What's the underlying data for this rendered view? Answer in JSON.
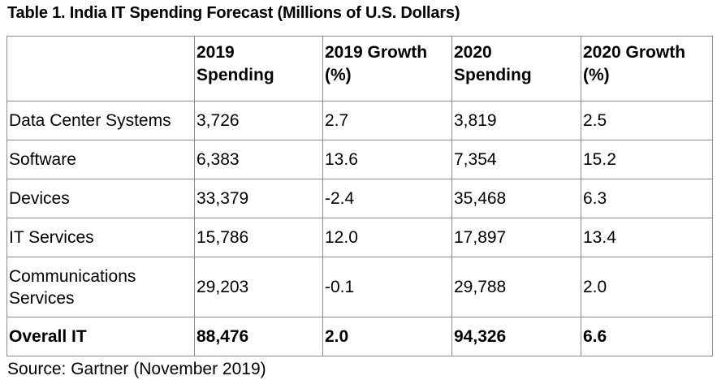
{
  "title": "Table 1. India IT Spending Forecast (Millions of U.S. Dollars)",
  "columns": [
    "",
    "2019 Spending",
    "2019 Growth (%)",
    "2020 Spending",
    "2020 Growth (%)"
  ],
  "header_lines": [
    [
      "",
      ""
    ],
    [
      "2019",
      "Spending"
    ],
    [
      "2019 Growth",
      "(%)"
    ],
    [
      "2020",
      "Spending"
    ],
    [
      "2020 Growth",
      "(%)"
    ]
  ],
  "rows": [
    {
      "segment": "Data Center Systems",
      "s2019": "3,726",
      "g2019": "2.7",
      "s2020": "3,819",
      "g2020": "2.5"
    },
    {
      "segment": "Software",
      "s2019": "6,383",
      "g2019": "13.6",
      "s2020": "7,354",
      "g2020": "15.2"
    },
    {
      "segment": "Devices",
      "s2019": "33,379",
      "g2019": "-2.4",
      "s2020": "35,468",
      "g2020": "6.3"
    },
    {
      "segment": "IT Services",
      "s2019": "15,786",
      "g2019": "12.0",
      "s2020": "17,897",
      "g2020": "13.4"
    },
    {
      "segment_lines": [
        "Communications",
        "Services"
      ],
      "segment": "Communications Services",
      "s2019": "29,203",
      "g2019": "-0.1",
      "s2020": "29,788",
      "g2020": "2.0"
    }
  ],
  "total": {
    "segment": "Overall IT",
    "s2019": "88,476",
    "g2019": "2.0",
    "s2020": "94,326",
    "g2020": "6.6"
  },
  "source": "Source: Gartner (November 2019)"
}
